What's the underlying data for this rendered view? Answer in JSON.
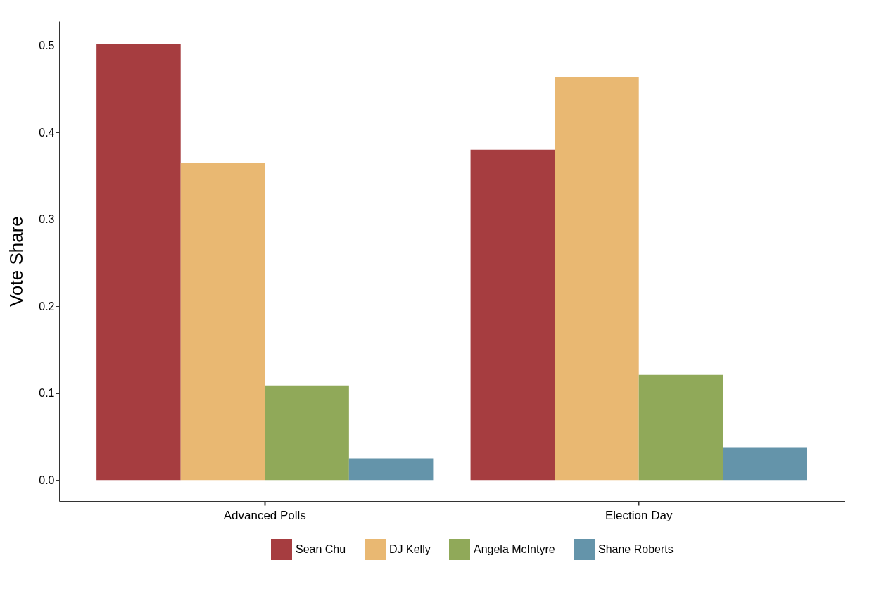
{
  "chart_data": {
    "type": "bar",
    "ylabel": "Vote Share",
    "categories": [
      "Advanced Polls",
      "Election Day"
    ],
    "series": [
      {
        "name": "Sean Chu",
        "color": "#a63d40",
        "values": [
          0.502,
          0.38
        ]
      },
      {
        "name": "DJ Kelly",
        "color": "#e9b872",
        "values": [
          0.365,
          0.464
        ]
      },
      {
        "name": "Angela McIntyre",
        "color": "#90a959",
        "values": [
          0.109,
          0.121
        ]
      },
      {
        "name": "Shane Roberts",
        "color": "#6494aa",
        "values": [
          0.025,
          0.038
        ]
      }
    ],
    "ylim": [
      -0.024,
      0.528
    ],
    "yticks": [
      {
        "value": 0,
        "label": "0.0"
      },
      {
        "value": 0.1,
        "label": "0.1"
      },
      {
        "value": 0.2,
        "label": "0.2"
      },
      {
        "value": 0.3,
        "label": "0.3"
      },
      {
        "value": 0.4,
        "label": "0.4"
      },
      {
        "value": 0.5,
        "label": "0.5"
      }
    ],
    "grid": false,
    "legend": "bottom"
  }
}
